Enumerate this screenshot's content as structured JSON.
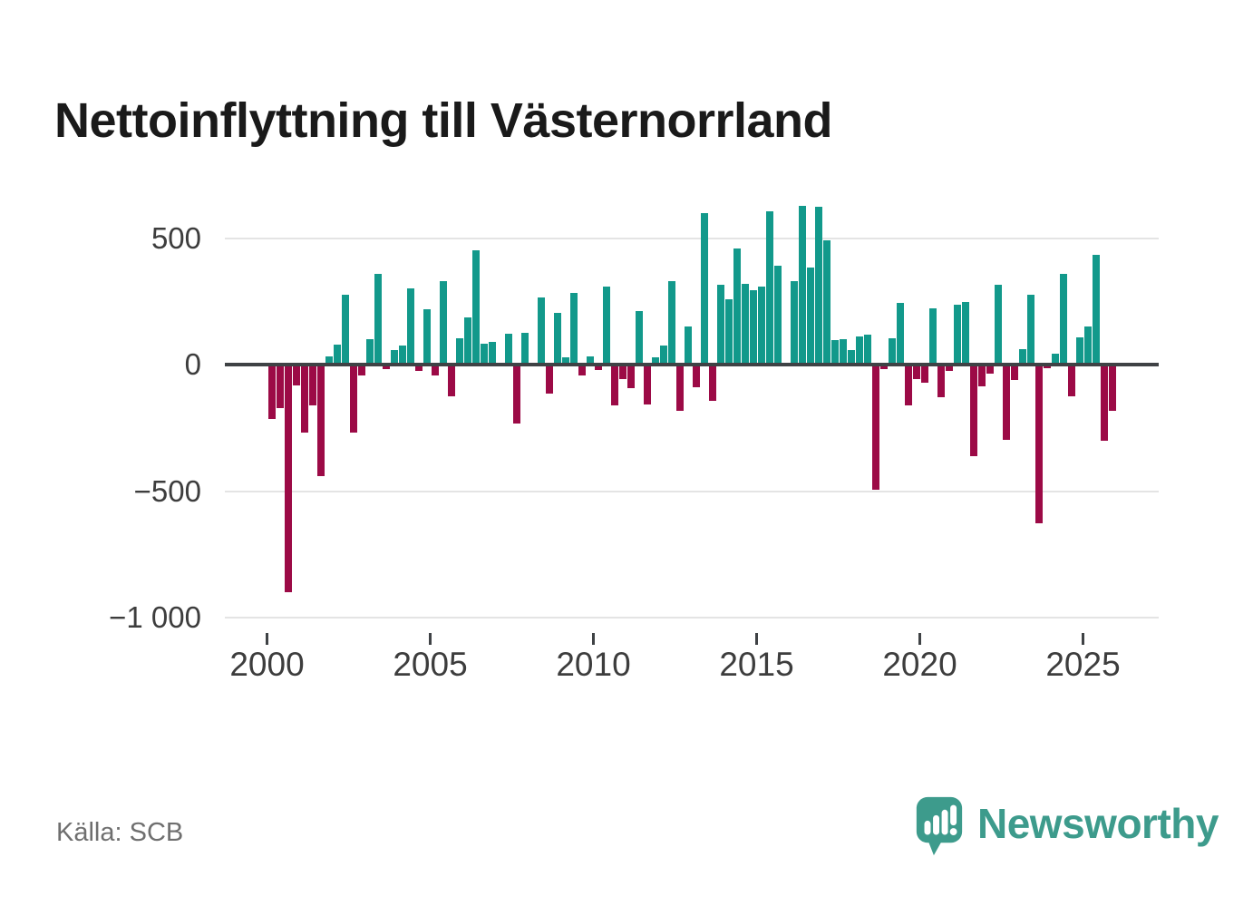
{
  "title": "Nettoinflyttning till Västernorrland",
  "source": "Källa: SCB",
  "branding": {
    "logo_text": "Newsworthy"
  },
  "colors": {
    "positive_bar": "#12998b",
    "negative_bar": "#9c0a46",
    "axis": "#3f4245",
    "grid": "#e4e4e4",
    "tick_text": "#3d3d3d",
    "source_text": "#6f6f6f",
    "brand_teal": "#3d9b8c",
    "title_text": "#1a1a1a"
  },
  "chart_data": {
    "type": "bar",
    "title": "Nettoinflyttning till Västernorrland",
    "frequency": "quarterly",
    "start_period": "2000 Q1",
    "end_period": "2025 Q4",
    "grid": "horizontal",
    "ylim": [
      -1050,
      650
    ],
    "y_axis": {
      "ticks": [
        {
          "value": 500,
          "label": "500"
        },
        {
          "value": 0,
          "label": "0"
        },
        {
          "value": -500,
          "label": "−500"
        },
        {
          "value": -1000,
          "label": "−1 000"
        }
      ]
    },
    "x_axis": {
      "ticks": [
        {
          "year": 2000,
          "label": "2000"
        },
        {
          "year": 2005,
          "label": "2005"
        },
        {
          "year": 2010,
          "label": "2010"
        },
        {
          "year": 2015,
          "label": "2015"
        },
        {
          "year": 2020,
          "label": "2020"
        },
        {
          "year": 2025,
          "label": "2025"
        }
      ]
    },
    "series": [
      {
        "year": 2000,
        "quarters": [
          -215,
          -173,
          -900,
          -83
        ]
      },
      {
        "year": 2001,
        "quarters": [
          -268,
          -161,
          -441,
          33
        ]
      },
      {
        "year": 2002,
        "quarters": [
          78,
          277,
          -268,
          -42
        ]
      },
      {
        "year": 2003,
        "quarters": [
          102,
          358,
          -18,
          56
        ]
      },
      {
        "year": 2004,
        "quarters": [
          74,
          300,
          -25,
          220
        ]
      },
      {
        "year": 2005,
        "quarters": [
          -42,
          328,
          -125,
          104
        ]
      },
      {
        "year": 2006,
        "quarters": [
          185,
          451,
          81,
          89
        ]
      },
      {
        "year": 2007,
        "quarters": [
          0,
          122,
          -233,
          125
        ]
      },
      {
        "year": 2008,
        "quarters": [
          0,
          267,
          -113,
          204
        ]
      },
      {
        "year": 2009,
        "quarters": [
          30,
          283,
          -43,
          32
        ]
      },
      {
        "year": 2010,
        "quarters": [
          -22,
          308,
          -161,
          -59
        ]
      },
      {
        "year": 2011,
        "quarters": [
          -92,
          211,
          -159,
          28
        ]
      },
      {
        "year": 2012,
        "quarters": [
          75,
          331,
          -183,
          152
        ]
      },
      {
        "year": 2013,
        "quarters": [
          -89,
          600,
          -143,
          316
        ]
      },
      {
        "year": 2014,
        "quarters": [
          259,
          459,
          320,
          295
        ]
      },
      {
        "year": 2015,
        "quarters": [
          310,
          605,
          390,
          0
        ]
      },
      {
        "year": 2016,
        "quarters": [
          331,
          627,
          382,
          623
        ]
      },
      {
        "year": 2017,
        "quarters": [
          492,
          95,
          99,
          58
        ]
      },
      {
        "year": 2018,
        "quarters": [
          110,
          117,
          -495,
          -19
        ]
      },
      {
        "year": 2019,
        "quarters": [
          104,
          245,
          -163,
          -56
        ]
      },
      {
        "year": 2020,
        "quarters": [
          -72,
          223,
          -128,
          -24
        ]
      },
      {
        "year": 2021,
        "quarters": [
          235,
          247,
          -361,
          -85
        ]
      },
      {
        "year": 2022,
        "quarters": [
          -35,
          317,
          -296,
          -60
        ]
      },
      {
        "year": 2023,
        "quarters": [
          60,
          275,
          -626,
          -15
        ]
      },
      {
        "year": 2024,
        "quarters": [
          42,
          360,
          -125,
          107
        ]
      },
      {
        "year": 2025,
        "quarters": [
          149,
          432,
          -302,
          -183
        ]
      }
    ]
  }
}
